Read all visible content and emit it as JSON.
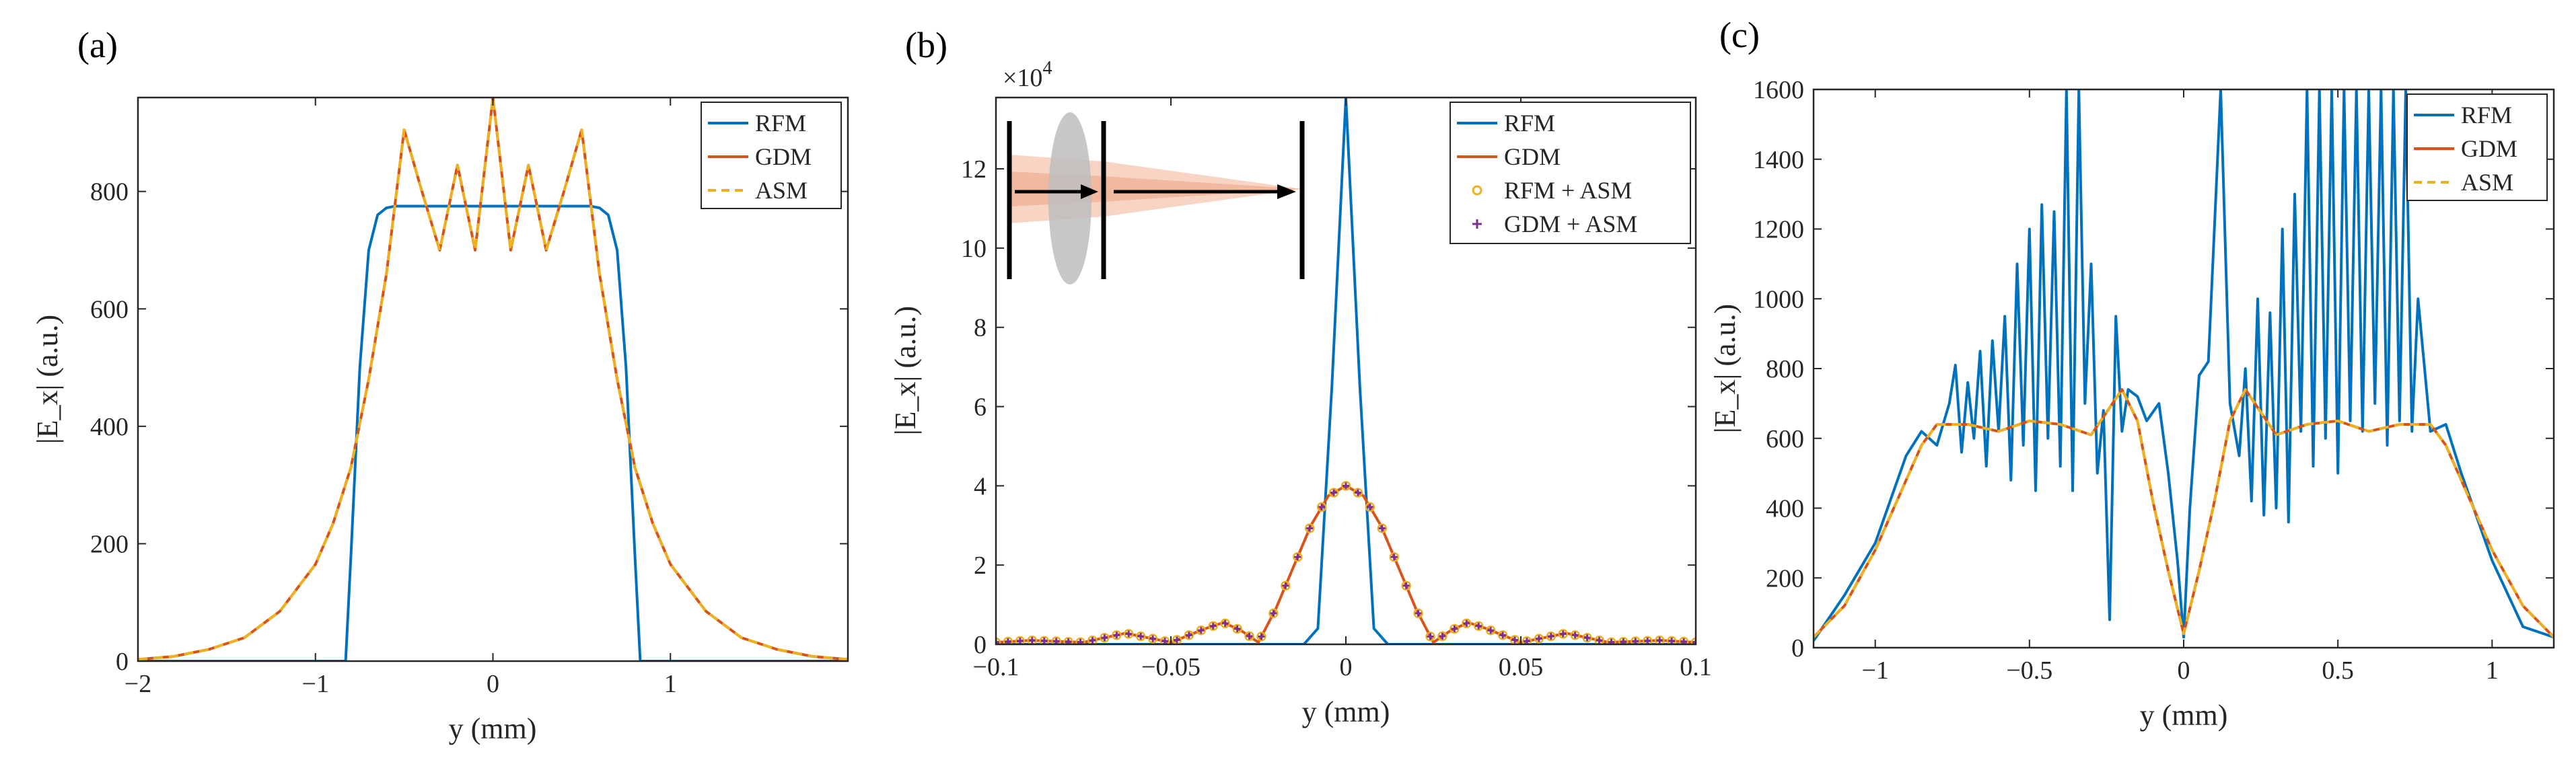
{
  "chart_data": [
    {
      "panel": "(a)",
      "type": "line",
      "xlabel": "y (mm)",
      "ylabel": "|E_x| (a.u.)",
      "xlim": [
        -2,
        2
      ],
      "ylim": [
        0,
        960
      ],
      "xticks": [
        -2,
        -1,
        0,
        1
      ],
      "xtick_labels": [
        "−2",
        "−1",
        "0",
        "1"
      ],
      "yticks": [
        0,
        200,
        400,
        600,
        800
      ],
      "ytick_labels": [
        "0",
        "200",
        "400",
        "600",
        "800"
      ],
      "legend_position": "top-right",
      "legend": [
        "RFM",
        "GDM",
        "ASM"
      ],
      "series": [
        {
          "name": "RFM",
          "style": "solid",
          "color": "#0072BD",
          "x": [
            -2,
            -0.9,
            -0.83,
            -0.8,
            -0.75,
            -0.7,
            -0.65,
            -0.6,
            -0.55,
            0,
            0.55,
            0.6,
            0.65,
            0.7,
            0.75,
            0.8,
            0.83,
            0.9,
            2
          ],
          "y": [
            0,
            0,
            0,
            180,
            500,
            700,
            760,
            772,
            775,
            775,
            775,
            772,
            760,
            700,
            500,
            180,
            0,
            0,
            0
          ]
        },
        {
          "name": "GDM",
          "style": "solid",
          "color": "#D95319",
          "x": [
            -2,
            -1.8,
            -1.6,
            -1.4,
            -1.2,
            -1.0,
            -0.9,
            -0.8,
            -0.7,
            -0.6,
            -0.5,
            -0.4,
            -0.3,
            -0.2,
            -0.1,
            0,
            0.1,
            0.2,
            0.3,
            0.4,
            0.5,
            0.6,
            0.7,
            0.8,
            0.9,
            1.0,
            1.2,
            1.4,
            1.6,
            1.8,
            2
          ],
          "y": [
            3,
            8,
            20,
            40,
            85,
            165,
            235,
            330,
            480,
            660,
            905,
            800,
            700,
            845,
            700,
            960,
            700,
            845,
            700,
            800,
            905,
            660,
            480,
            330,
            235,
            165,
            85,
            40,
            20,
            8,
            3
          ]
        },
        {
          "name": "ASM",
          "style": "dashed",
          "color": "#EDB120",
          "x": [
            -2,
            -1.8,
            -1.6,
            -1.4,
            -1.2,
            -1.0,
            -0.9,
            -0.8,
            -0.7,
            -0.6,
            -0.5,
            -0.4,
            -0.3,
            -0.2,
            -0.1,
            0,
            0.1,
            0.2,
            0.3,
            0.4,
            0.5,
            0.6,
            0.7,
            0.8,
            0.9,
            1.0,
            1.2,
            1.4,
            1.6,
            1.8,
            2
          ],
          "y": [
            3,
            8,
            20,
            40,
            85,
            165,
            235,
            330,
            480,
            660,
            905,
            800,
            700,
            845,
            700,
            960,
            700,
            845,
            700,
            800,
            905,
            660,
            480,
            330,
            235,
            165,
            85,
            40,
            20,
            8,
            3
          ]
        }
      ]
    },
    {
      "panel": "(b)",
      "type": "line",
      "xlabel": "y (mm)",
      "ylabel": "|E_x| (a.u.)",
      "y_scale_label": "×10",
      "y_scale_exponent": "4",
      "xlim": [
        -0.1,
        0.1
      ],
      "ylim": [
        0,
        13.8
      ],
      "xticks": [
        -0.1,
        -0.05,
        0,
        0.05,
        0.1
      ],
      "xtick_labels": [
        "−0.1",
        "−0.05",
        "0",
        "0.05",
        "0.1"
      ],
      "yticks": [
        0,
        2,
        4,
        6,
        8,
        10,
        12
      ],
      "ytick_labels": [
        "0",
        "2",
        "4",
        "6",
        "8",
        "10",
        "12"
      ],
      "legend_position": "top-right",
      "legend": [
        "RFM",
        "GDM",
        "RFM + ASM",
        "GDM + ASM"
      ],
      "series": [
        {
          "name": "RFM",
          "style": "solid",
          "color": "#0072BD",
          "x": [
            -0.1,
            -0.012,
            -0.008,
            -0.004,
            0,
            0.004,
            0.008,
            0.012,
            0.1
          ],
          "y": [
            0,
            0,
            0.4,
            6.5,
            13.8,
            6.5,
            0.4,
            0,
            0
          ]
        },
        {
          "name": "GDM",
          "style": "solid",
          "color": "#D95319",
          "x": [
            -0.1,
            -0.09,
            -0.075,
            -0.063,
            -0.05,
            -0.04,
            -0.035,
            -0.03,
            -0.025,
            -0.02,
            -0.015,
            -0.01,
            -0.005,
            0,
            0.005,
            0.01,
            0.015,
            0.02,
            0.025,
            0.03,
            0.035,
            0.04,
            0.05,
            0.063,
            0.075,
            0.09,
            0.1
          ],
          "y": [
            0.05,
            0.1,
            0.05,
            0.28,
            0.05,
            0.4,
            0.55,
            0.35,
            0.05,
            0.9,
            1.95,
            3.0,
            3.75,
            4.0,
            3.75,
            3.0,
            1.95,
            0.9,
            0.05,
            0.35,
            0.55,
            0.4,
            0.05,
            0.28,
            0.05,
            0.1,
            0.05
          ]
        },
        {
          "name": "RFM + ASM",
          "style": "markers-circle",
          "color": "#EDB120",
          "x": [
            -0.1,
            -0.09,
            -0.075,
            -0.063,
            -0.05,
            -0.04,
            -0.035,
            -0.03,
            -0.025,
            -0.02,
            -0.015,
            -0.01,
            -0.005,
            0,
            0.005,
            0.01,
            0.015,
            0.02,
            0.025,
            0.03,
            0.035,
            0.04,
            0.05,
            0.063,
            0.075,
            0.09,
            0.1
          ],
          "y": [
            0.05,
            0.1,
            0.05,
            0.28,
            0.05,
            0.4,
            0.55,
            0.35,
            0.05,
            0.9,
            1.95,
            3.0,
            3.75,
            4.0,
            3.75,
            3.0,
            1.95,
            0.9,
            0.05,
            0.35,
            0.55,
            0.4,
            0.05,
            0.28,
            0.05,
            0.1,
            0.05
          ]
        },
        {
          "name": "GDM + ASM",
          "style": "markers-star",
          "color": "#7E2F8E",
          "x": [
            -0.1,
            -0.09,
            -0.075,
            -0.063,
            -0.05,
            -0.04,
            -0.035,
            -0.03,
            -0.025,
            -0.02,
            -0.015,
            -0.01,
            -0.005,
            0,
            0.005,
            0.01,
            0.015,
            0.02,
            0.025,
            0.03,
            0.035,
            0.04,
            0.05,
            0.063,
            0.075,
            0.09,
            0.1
          ],
          "y": [
            0.05,
            0.1,
            0.05,
            0.28,
            0.05,
            0.4,
            0.55,
            0.35,
            0.05,
            0.9,
            1.95,
            3.0,
            3.75,
            4.0,
            3.75,
            3.0,
            1.95,
            0.9,
            0.05,
            0.35,
            0.55,
            0.4,
            0.05,
            0.28,
            0.05,
            0.1,
            0.05
          ]
        }
      ]
    },
    {
      "panel": "(c)",
      "type": "line",
      "xlabel": "y (mm)",
      "ylabel": "|E_x| (a.u.)",
      "xlim": [
        -1.2,
        1.2
      ],
      "ylim": [
        0,
        1600
      ],
      "xticks": [
        -1,
        -0.5,
        0,
        0.5,
        1
      ],
      "xtick_labels": [
        "−1",
        "−0.5",
        "0",
        "0.5",
        "1"
      ],
      "yticks": [
        0,
        200,
        400,
        600,
        800,
        1000,
        1200,
        1400,
        1600
      ],
      "ytick_labels": [
        "0",
        "200",
        "400",
        "600",
        "800",
        "1000",
        "1200",
        "1400",
        "1600"
      ],
      "legend_position": "top-right",
      "legend": [
        "RFM",
        "GDM",
        "ASM"
      ],
      "series": [
        {
          "name": "RFM",
          "style": "solid",
          "color": "#0072BD",
          "x": [
            -1.2,
            -1.1,
            -1.0,
            -0.9,
            -0.85,
            -0.8,
            -0.76,
            -0.74,
            -0.72,
            -0.7,
            -0.68,
            -0.66,
            -0.64,
            -0.62,
            -0.6,
            -0.58,
            -0.56,
            -0.54,
            -0.52,
            -0.5,
            -0.48,
            -0.46,
            -0.44,
            -0.42,
            -0.4,
            -0.38,
            -0.36,
            -0.34,
            -0.32,
            -0.3,
            -0.28,
            -0.26,
            -0.24,
            -0.22,
            -0.2,
            -0.18,
            -0.15,
            -0.12,
            -0.08,
            -0.05,
            -0.02,
            0,
            0.02,
            0.05,
            0.08,
            0.12,
            0.15,
            0.18,
            0.2,
            0.22,
            0.24,
            0.26,
            0.28,
            0.3,
            0.32,
            0.34,
            0.36,
            0.38,
            0.4,
            0.42,
            0.44,
            0.46,
            0.48,
            0.5,
            0.52,
            0.54,
            0.56,
            0.58,
            0.6,
            0.62,
            0.64,
            0.66,
            0.68,
            0.7,
            0.72,
            0.74,
            0.76,
            0.8,
            0.85,
            0.9,
            1.0,
            1.1,
            1.2
          ],
          "y": [
            20,
            150,
            300,
            550,
            620,
            580,
            700,
            810,
            560,
            760,
            600,
            850,
            520,
            880,
            620,
            950,
            480,
            1100,
            580,
            1200,
            450,
            1270,
            600,
            1250,
            520,
            1600,
            450,
            1600,
            700,
            1100,
            500,
            680,
            80,
            950,
            620,
            740,
            720,
            650,
            700,
            500,
            250,
            30,
            400,
            780,
            820,
            1600,
            700,
            550,
            800,
            420,
            1000,
            380,
            960,
            400,
            1200,
            360,
            1300,
            620,
            1600,
            520,
            1600,
            600,
            1600,
            500,
            1600,
            650,
            1600,
            620,
            1600,
            700,
            1600,
            580,
            1600,
            650,
            1600,
            620,
            1000,
            620,
            640,
            500,
            250,
            60,
            30
          ]
        },
        {
          "name": "GDM",
          "style": "solid",
          "color": "#D95319",
          "x": [
            -1.2,
            -1.1,
            -1.0,
            -0.9,
            -0.85,
            -0.8,
            -0.7,
            -0.6,
            -0.5,
            -0.4,
            -0.3,
            -0.2,
            -0.15,
            -0.1,
            -0.05,
            0,
            0.05,
            0.1,
            0.15,
            0.2,
            0.3,
            0.4,
            0.5,
            0.6,
            0.7,
            0.8,
            0.85,
            0.9,
            1.0,
            1.1,
            1.2
          ],
          "y": [
            30,
            120,
            280,
            480,
            580,
            640,
            640,
            620,
            650,
            640,
            610,
            740,
            650,
            420,
            220,
            40,
            220,
            420,
            650,
            740,
            610,
            640,
            650,
            620,
            640,
            640,
            580,
            480,
            280,
            120,
            30
          ]
        },
        {
          "name": "ASM",
          "style": "dashed",
          "color": "#EDB120",
          "x": [
            -1.2,
            -1.1,
            -1.0,
            -0.9,
            -0.85,
            -0.8,
            -0.7,
            -0.6,
            -0.5,
            -0.4,
            -0.3,
            -0.2,
            -0.15,
            -0.1,
            -0.05,
            0,
            0.05,
            0.1,
            0.15,
            0.2,
            0.3,
            0.4,
            0.5,
            0.6,
            0.7,
            0.8,
            0.85,
            0.9,
            1.0,
            1.1,
            1.2
          ],
          "y": [
            30,
            120,
            280,
            480,
            580,
            640,
            640,
            620,
            650,
            640,
            610,
            740,
            650,
            420,
            220,
            40,
            220,
            420,
            650,
            740,
            610,
            640,
            650,
            620,
            640,
            640,
            580,
            480,
            280,
            120,
            30
          ]
        }
      ]
    }
  ]
}
